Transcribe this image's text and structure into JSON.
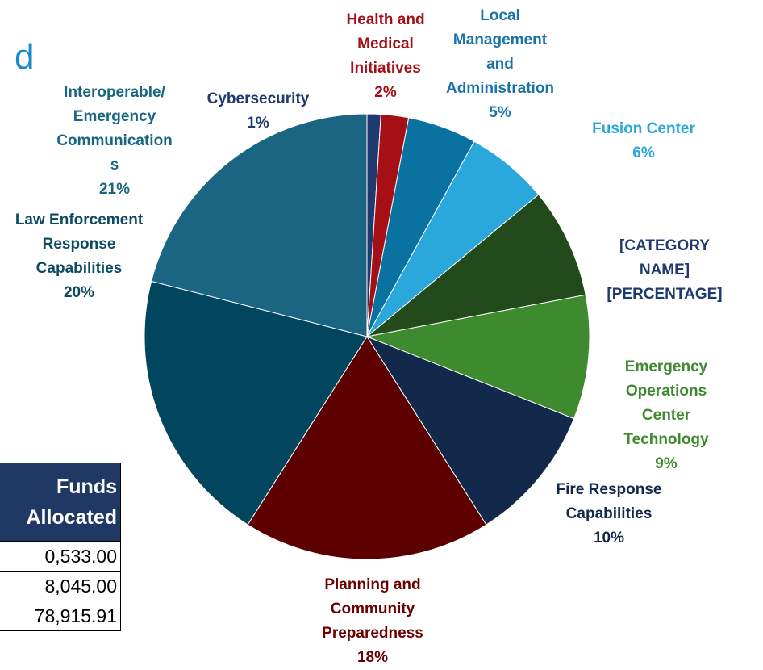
{
  "title": "d",
  "chart_data": {
    "type": "pie",
    "categories": [
      "Cybersecurity",
      "Health and Medical Initiatives",
      "Local Management and Administration",
      "Fusion Center",
      "[CATEGORY NAME]",
      "Emergency Operations Center Technology",
      "Fire Response Capabilities",
      "Planning and Community Preparedness",
      "Law Enforcement Response Capabilities",
      "Interoperable/ Emergency Communications"
    ],
    "values": [
      1,
      2,
      5,
      6,
      8,
      9,
      10,
      18,
      20,
      21
    ],
    "value_labels": [
      "1%",
      "2%",
      "5%",
      "6%",
      "[PERCENTAGE]",
      "9%",
      "10%",
      "18%",
      "20%",
      "21%"
    ],
    "colors": [
      "#1f3a6e",
      "#a50f15",
      "#0a72a0",
      "#2aa8dc",
      "#234a1b",
      "#3e8a2e",
      "#13294b",
      "#5c0000",
      "#01455e",
      "#1a6582"
    ],
    "label_colors": [
      "#1f3a6e",
      "#a50f15",
      "#1a74a8",
      "#2aa8dc",
      "#1f3a6e",
      "#3e8a2e",
      "#13294b",
      "#6b0000",
      "#0d4a63",
      "#1a6582"
    ]
  },
  "table": {
    "header": "Funds Allocated",
    "rows": [
      "0,533.00",
      "8,045.00",
      "78,915.91"
    ]
  }
}
